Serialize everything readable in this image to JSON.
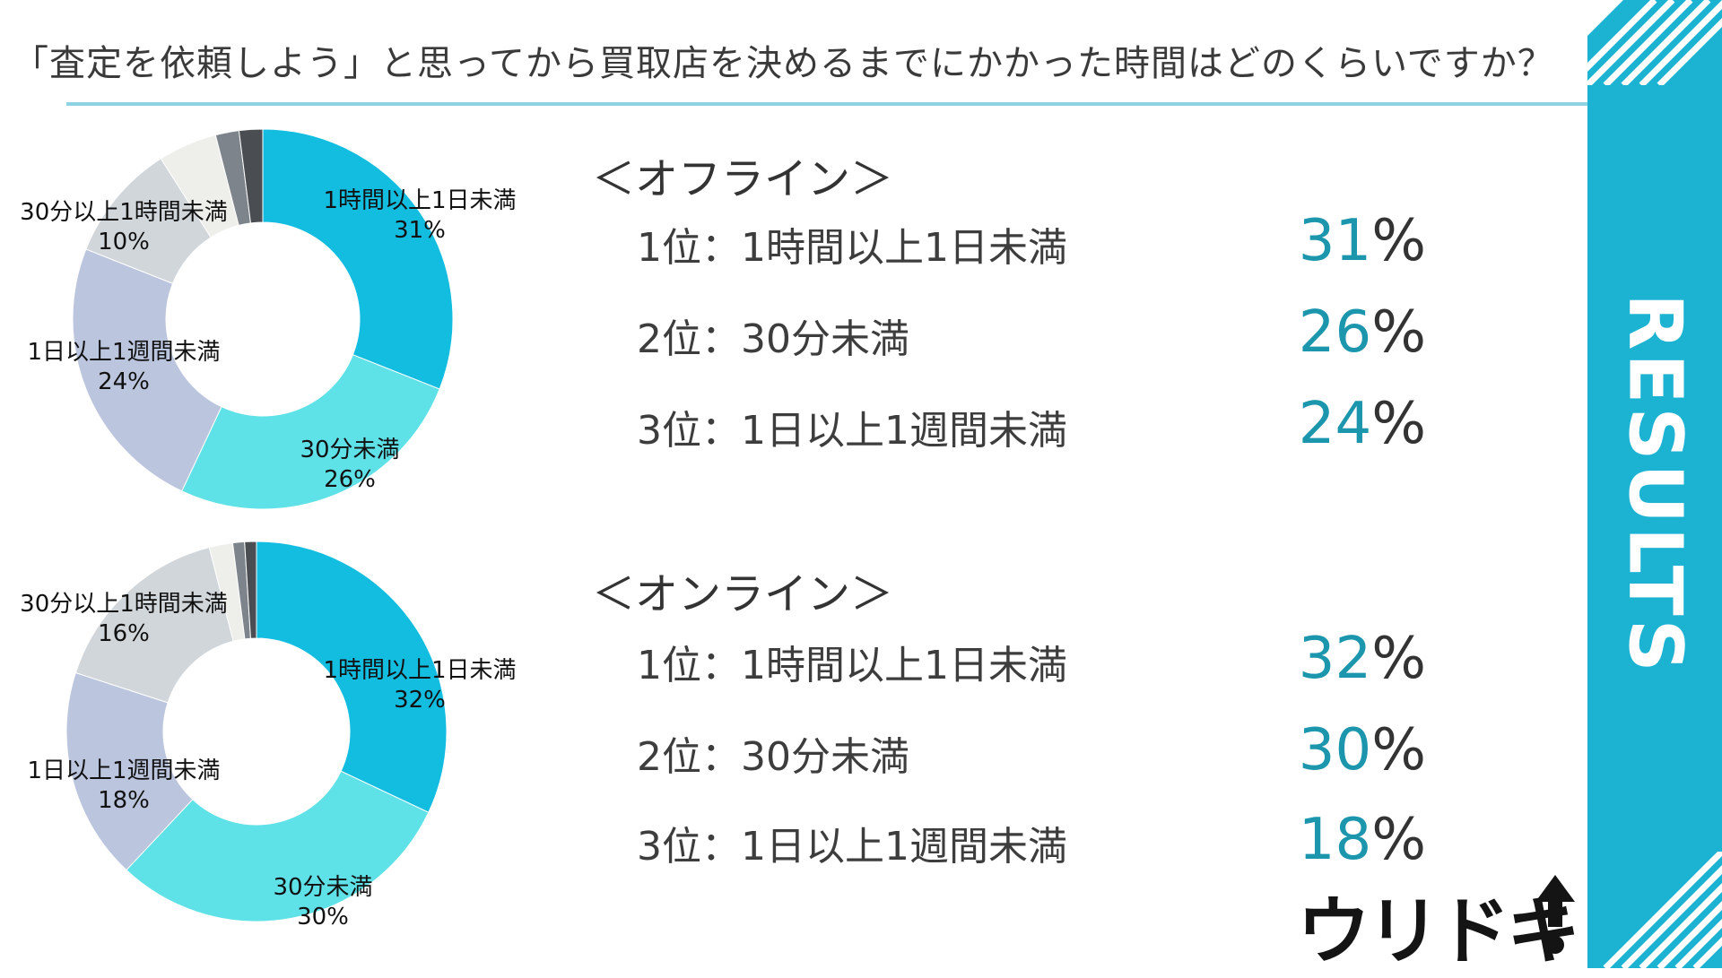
{
  "title": "「査定を依頼しよう」と思ってから買取店を決めるまでにかかった時間はどのくらいですか？",
  "sidebar": {
    "label": "RESULTS"
  },
  "logo": {
    "text": "ウリドキ"
  },
  "colors": {
    "accent": "#1cb3d3",
    "rank_number": "#1b96ad",
    "slice_1": "#12bde0",
    "slice_2": "#5fe1e8",
    "slice_3": "#bcc5de",
    "slice_4": "#d1d6db",
    "slice_5": "#eeeeeb",
    "slice_6": "#7d848b",
    "slice_7": "#4a4d52"
  },
  "sections": [
    {
      "heading": "＜オフライン＞",
      "ranks": [
        {
          "label": "1位：1時間以上1日未満",
          "value": "31",
          "unit": "%"
        },
        {
          "label": "2位：30分未満",
          "value": "26",
          "unit": "%"
        },
        {
          "label": "3位：1日以上1週間未満",
          "value": "24",
          "unit": "%"
        }
      ]
    },
    {
      "heading": "＜オンライン＞",
      "ranks": [
        {
          "label": "1位：1時間以上1日未満",
          "value": "32",
          "unit": "%"
        },
        {
          "label": "2位：30分未満",
          "value": "30",
          "unit": "%"
        },
        {
          "label": "3位：1日以上1週間未満",
          "value": "18",
          "unit": "%"
        }
      ]
    }
  ],
  "chart_data": [
    {
      "type": "pie",
      "donut": true,
      "categories": [
        "1時間以上1日未満",
        "30分未満",
        "1日以上1週間未満",
        "30分以上1時間未満",
        "",
        "",
        ""
      ],
      "values": [
        31,
        26,
        24,
        10,
        5,
        2,
        2
      ],
      "labels": [
        {
          "name": "1時間以上1日未満",
          "pct": "31%"
        },
        {
          "name": "30分未満",
          "pct": "26%"
        },
        {
          "name": "1日以上1週間未満",
          "pct": "24%"
        },
        {
          "name": "30分以上1時間未満",
          "pct": "10%"
        }
      ]
    },
    {
      "type": "pie",
      "donut": true,
      "categories": [
        "1時間以上1日未満",
        "30分未満",
        "1日以上1週間未満",
        "30分以上1時間未満",
        "",
        "",
        ""
      ],
      "values": [
        32,
        30,
        18,
        16,
        2,
        1,
        1
      ],
      "labels": [
        {
          "name": "1時間以上1日未満",
          "pct": "32%"
        },
        {
          "name": "30分未満",
          "pct": "30%"
        },
        {
          "name": "1日以上1週間未満",
          "pct": "18%"
        },
        {
          "name": "30分以上1時間未満",
          "pct": "16%"
        }
      ]
    }
  ]
}
